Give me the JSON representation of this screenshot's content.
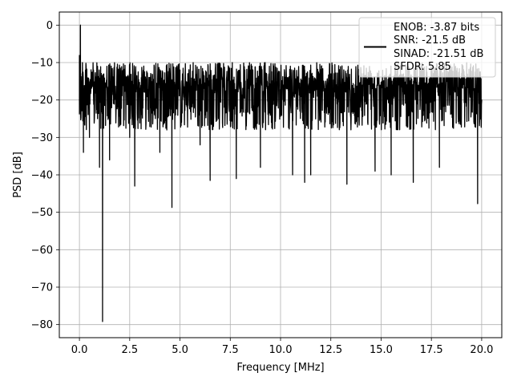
{
  "chart_data": {
    "type": "line",
    "title": "",
    "xlabel": "Frequency [MHz]",
    "ylabel": "PSD [dB]",
    "xlim": [
      -1.0,
      21.0
    ],
    "ylim": [
      -83.5,
      3.5
    ],
    "x_ticks": [
      0.0,
      2.5,
      5.0,
      7.5,
      10.0,
      12.5,
      15.0,
      17.5,
      20.0
    ],
    "x_tick_labels": [
      "0.0",
      "2.5",
      "5.0",
      "7.5",
      "10.0",
      "12.5",
      "15.0",
      "17.5",
      "20.0"
    ],
    "y_ticks": [
      0,
      -10,
      -20,
      -30,
      -40,
      -50,
      -60,
      -70,
      -80
    ],
    "y_tick_labels": [
      "0",
      "−10",
      "−20",
      "−30",
      "−40",
      "−50",
      "−60",
      "−70",
      "−80"
    ],
    "grid": true,
    "legend_position": "top-right",
    "legend_entries": [
      "ENOB: -3.87 bits",
      "SNR: -21.5 dB",
      "SINAD: -21.51 dB",
      "SFDR: 5.85"
    ],
    "series": [
      {
        "color": "#000000",
        "x_range": [
          0.0,
          20.0
        ],
        "noise_floor_db": [
          -40,
          -10
        ],
        "points": [
          [
            0.0,
            -8
          ],
          [
            0.05,
            0.0
          ],
          [
            0.1,
            -15
          ],
          [
            0.15,
            -10
          ],
          [
            0.2,
            -34
          ],
          [
            0.3,
            -12
          ],
          [
            0.5,
            -30
          ],
          [
            0.7,
            -12
          ],
          [
            0.9,
            -25
          ],
          [
            1.0,
            -38
          ],
          [
            1.15,
            -79.2
          ],
          [
            1.3,
            -20
          ],
          [
            1.5,
            -36
          ],
          [
            2.0,
            -12
          ],
          [
            2.5,
            -30
          ],
          [
            2.75,
            -43
          ],
          [
            3.5,
            -14
          ],
          [
            4.0,
            -34
          ],
          [
            4.6,
            -48.7
          ],
          [
            5.0,
            -12
          ],
          [
            6.0,
            -32
          ],
          [
            6.5,
            -41.5
          ],
          [
            7.0,
            -11
          ],
          [
            7.8,
            -41
          ],
          [
            8.5,
            -12
          ],
          [
            9.0,
            -38
          ],
          [
            10.6,
            -40
          ],
          [
            11.2,
            -42
          ],
          [
            11.5,
            -40
          ],
          [
            12.5,
            -13
          ],
          [
            13.3,
            -42.5
          ],
          [
            14.0,
            -12
          ],
          [
            14.7,
            -39
          ],
          [
            15.5,
            -40
          ],
          [
            16.6,
            -42
          ],
          [
            17.0,
            -15
          ],
          [
            17.9,
            -38
          ],
          [
            18.5,
            -12
          ],
          [
            19.8,
            -47.7
          ],
          [
            20.0,
            -20
          ]
        ]
      }
    ]
  }
}
